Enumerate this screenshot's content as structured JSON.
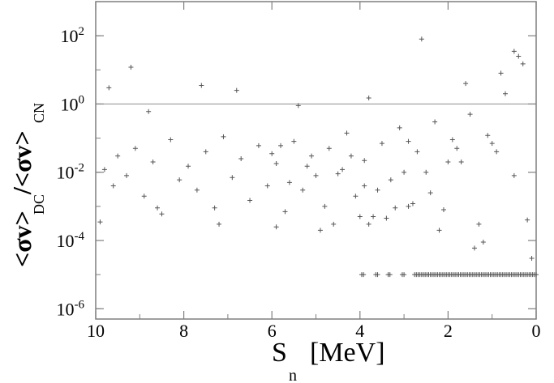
{
  "chart_data": {
    "type": "scatter",
    "title": "",
    "xlabel": "S",
    "xlabel_sub": "n",
    "xlabel_units": "[MeV]",
    "ylabel_parts": [
      "<σv>",
      "DC",
      "/<σv>",
      "CN"
    ],
    "x_axis": {
      "min": 0,
      "max": 10,
      "reversed": true,
      "ticks": [
        10,
        8,
        6,
        4,
        2,
        0
      ]
    },
    "y_axis": {
      "scale": "log",
      "min": 5e-07,
      "max": 1000,
      "ticks": [
        {
          "value": 100,
          "base": "10",
          "exp": "2"
        },
        {
          "value": 1,
          "base": "10",
          "exp": "0"
        },
        {
          "value": 0.01,
          "base": "10",
          "exp": "-2"
        },
        {
          "value": 0.0001,
          "base": "10",
          "exp": "-4"
        },
        {
          "value": 1e-06,
          "base": "10",
          "exp": "-6"
        }
      ]
    },
    "reference_line": {
      "y": 1
    },
    "floor_row": {
      "y": 1e-05,
      "x_min": 0.0,
      "x_max": 4.2
    },
    "marker": "+",
    "marker_color": "#555555",
    "axis_color": "#7f7f7f",
    "points": [
      [
        9.8,
        0.012
      ],
      [
        9.6,
        0.004
      ],
      [
        9.5,
        0.03
      ],
      [
        9.3,
        0.008
      ],
      [
        9.1,
        0.05
      ],
      [
        8.9,
        0.002
      ],
      [
        8.7,
        0.02
      ],
      [
        8.5,
        0.0006
      ],
      [
        8.3,
        0.09
      ],
      [
        8.1,
        0.006
      ],
      [
        7.9,
        0.015
      ],
      [
        7.7,
        0.003
      ],
      [
        7.5,
        0.04
      ],
      [
        7.3,
        0.0009
      ],
      [
        7.1,
        0.11
      ],
      [
        6.9,
        0.007
      ],
      [
        6.7,
        0.025
      ],
      [
        6.5,
        0.0015
      ],
      [
        6.3,
        0.06
      ],
      [
        6.1,
        0.004
      ],
      [
        5.9,
        0.018
      ],
      [
        5.7,
        0.0007
      ],
      [
        5.5,
        0.08
      ],
      [
        5.3,
        0.003
      ],
      [
        5.1,
        0.03
      ],
      [
        4.9,
        0.0002
      ],
      [
        4.7,
        0.05
      ],
      [
        4.5,
        0.009
      ],
      [
        4.3,
        0.14
      ],
      [
        4.1,
        0.002
      ],
      [
        3.9,
        0.022
      ],
      [
        3.7,
        0.0005
      ],
      [
        3.5,
        0.07
      ],
      [
        3.3,
        0.006
      ],
      [
        3.1,
        0.2
      ],
      [
        2.9,
        0.001
      ],
      [
        2.7,
        0.04
      ],
      [
        2.5,
        0.01
      ],
      [
        2.3,
        0.3
      ],
      [
        2.1,
        0.0008
      ],
      [
        1.9,
        0.09
      ],
      [
        1.7,
        0.02
      ],
      [
        1.5,
        0.5
      ],
      [
        1.3,
        0.0003
      ],
      [
        1.1,
        0.12
      ],
      [
        0.9,
        0.04
      ],
      [
        0.7,
        2.0
      ],
      [
        0.5,
        0.008
      ],
      [
        0.3,
        15.0
      ],
      [
        0.2,
        0.0004
      ],
      [
        9.7,
        3.0
      ],
      [
        9.2,
        12.0
      ],
      [
        8.8,
        0.6
      ],
      [
        7.6,
        3.5
      ],
      [
        6.8,
        2.5
      ],
      [
        5.4,
        0.9
      ],
      [
        3.8,
        1.5
      ],
      [
        2.6,
        80
      ],
      [
        1.6,
        4
      ],
      [
        0.8,
        8
      ],
      [
        0.5,
        35
      ],
      [
        0.4,
        25
      ],
      [
        9.9,
        0.00035
      ],
      [
        8.6,
        0.0009
      ],
      [
        7.2,
        0.0003
      ],
      [
        5.9,
        0.00025
      ],
      [
        4.6,
        0.0003
      ],
      [
        3.4,
        0.00045
      ],
      [
        2.2,
        0.0002
      ],
      [
        1.4,
        6e-05
      ],
      [
        1.2,
        9e-05
      ],
      [
        0.1,
        3e-05
      ],
      [
        4.0,
        0.0005
      ],
      [
        3.9,
        0.004
      ],
      [
        3.8,
        0.0003
      ],
      [
        3.6,
        0.003
      ],
      [
        3.2,
        0.0009
      ],
      [
        2.8,
        0.0012
      ],
      [
        2.4,
        0.0025
      ],
      [
        2.0,
        0.02
      ],
      [
        1.8,
        0.05
      ],
      [
        1.0,
        0.07
      ],
      [
        6.0,
        0.035
      ],
      [
        5.8,
        0.06
      ],
      [
        5.6,
        0.005
      ],
      [
        5.2,
        0.015
      ],
      [
        5.0,
        0.008
      ],
      [
        4.8,
        0.001
      ],
      [
        4.4,
        0.012
      ],
      [
        4.2,
        0.03
      ],
      [
        3.0,
        0.01
      ],
      [
        2.9,
        0.08
      ]
    ]
  }
}
